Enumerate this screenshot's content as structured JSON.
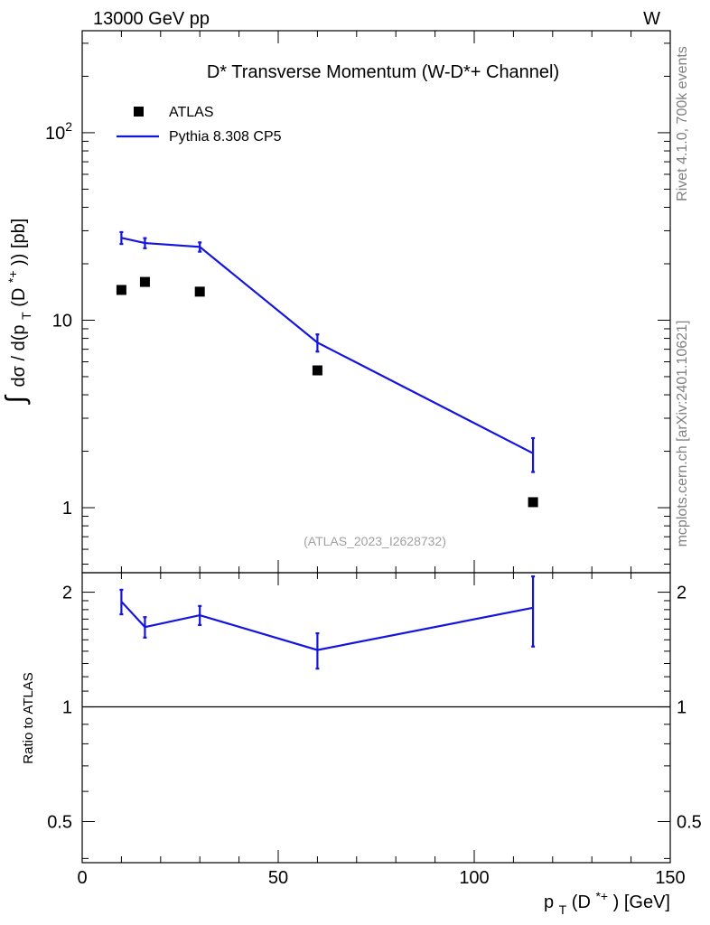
{
  "header": {
    "left": "13000 GeV pp",
    "right": "W"
  },
  "side_labels": {
    "rivet": "Rivet 4.1.0,  700k events",
    "mcplots": "mcplots.cern.ch [arXiv:2401.10621]"
  },
  "chart_data": {
    "type": "scatter",
    "title": "D* Transverse Momentum (W-D*+ Channel)",
    "analysis_id": "(ATLAS_2023_I2628732)",
    "xlabel": "p_T(D*+) [GeV]",
    "xlabel_parts": {
      "main": "p",
      "sub": "T",
      "mid": "(D",
      "sup": "*+",
      "tail": ") [GeV]"
    },
    "ylabel": "∫ dσ / d(p_T (D*+)) [pb]",
    "ylabel_parts": {
      "integral": "∫",
      "main": "dσ / d(p",
      "sub": "T",
      "mid": "(D",
      "sup": "*+",
      "tail": ")) [pb]"
    },
    "ratio_ylabel": "Ratio to ATLAS",
    "xlim": [
      0,
      150
    ],
    "ylim": [
      0.45,
      350
    ],
    "ratio_ylim": [
      0.39,
      2.25
    ],
    "y_scale": "log",
    "x_ticks": [
      0,
      50,
      100,
      150
    ],
    "x_tick_labels": [
      "0",
      "50",
      "100",
      "150"
    ],
    "y_tick_major": [
      1,
      10,
      100
    ],
    "y_tick_labels": [
      "1",
      "10",
      "10²"
    ],
    "y_tick_label_parts": [
      {
        "base": "1",
        "exp": ""
      },
      {
        "base": "10",
        "exp": ""
      },
      {
        "base": "10",
        "exp": "2"
      }
    ],
    "ratio_ticks": [
      0.5,
      1,
      2
    ],
    "ratio_tick_labels": [
      "0.5",
      "1",
      "2"
    ],
    "legend": {
      "position": "top-left",
      "entries": [
        "ATLAS",
        "Pythia 8.308 CP5"
      ]
    },
    "series": [
      {
        "name": "ATLAS",
        "style": "marker",
        "color": "#000000",
        "x": [
          10,
          16,
          30,
          60,
          115
        ],
        "y": [
          14.5,
          16.0,
          14.2,
          5.4,
          1.07
        ]
      },
      {
        "name": "Pythia 8.308 CP5",
        "style": "line",
        "color": "#1414e0",
        "x": [
          10,
          16,
          30,
          60,
          115
        ],
        "y": [
          27.5,
          25.8,
          24.6,
          7.6,
          1.95
        ],
        "y_err_low": [
          2.0,
          1.6,
          1.4,
          0.8,
          0.4
        ],
        "y_err_high": [
          2.0,
          1.6,
          1.4,
          0.8,
          0.4
        ]
      }
    ],
    "ratio_series": {
      "name": "Pythia 8.308 CP5 / ATLAS",
      "x": [
        10,
        16,
        30,
        60,
        115
      ],
      "y": [
        1.89,
        1.62,
        1.74,
        1.41,
        1.82
      ],
      "y_err_low": [
        0.14,
        0.1,
        0.1,
        0.15,
        0.38
      ],
      "y_err_high": [
        0.14,
        0.1,
        0.1,
        0.15,
        0.38
      ]
    }
  }
}
